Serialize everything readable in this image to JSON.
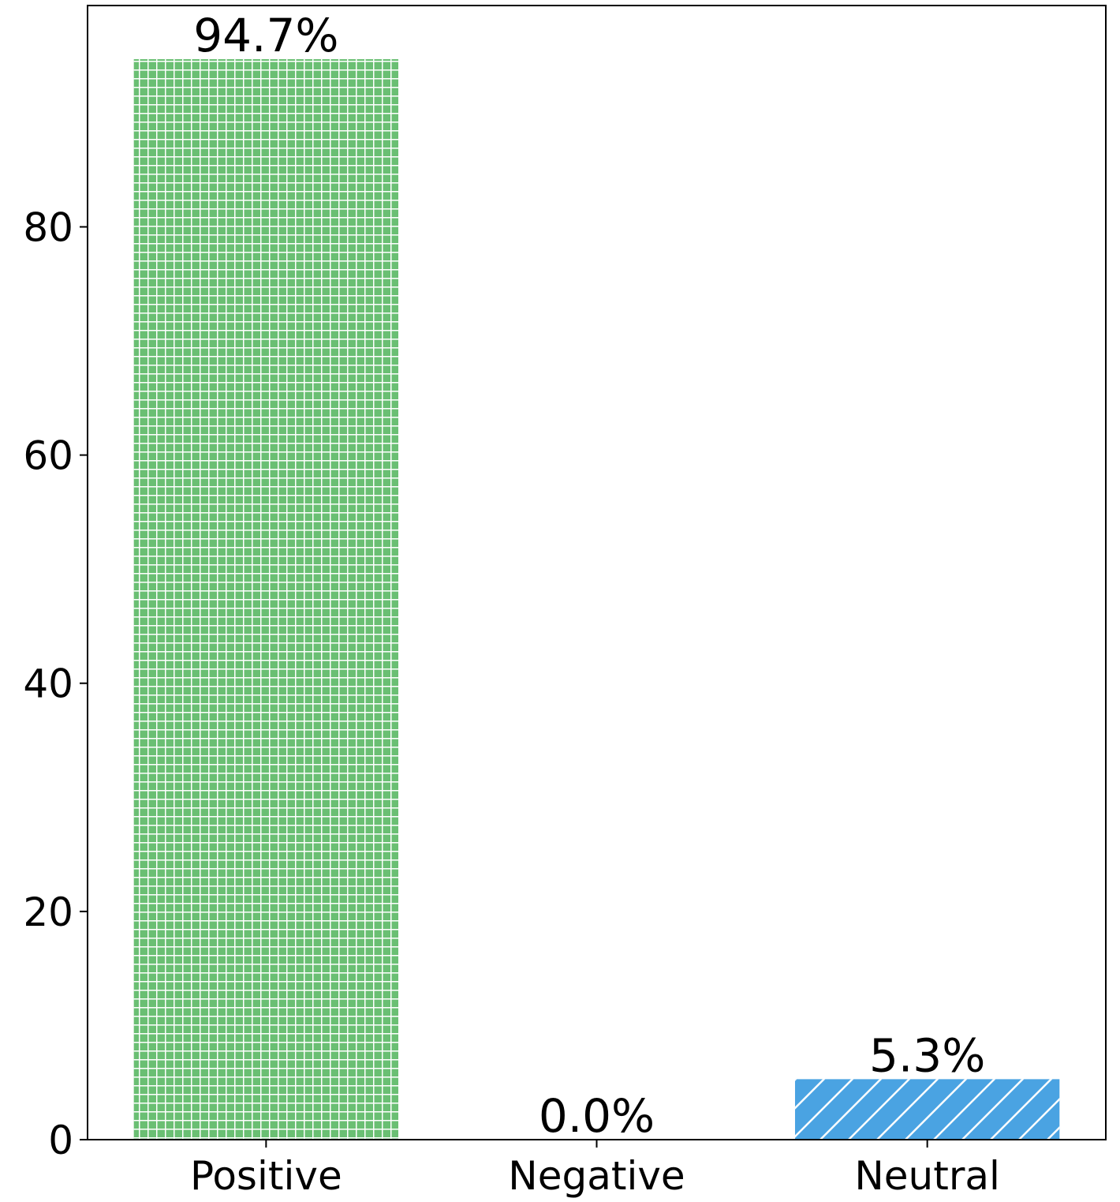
{
  "chart_data": {
    "type": "bar",
    "categories": [
      "Positive",
      "Negative",
      "Neutral"
    ],
    "values": [
      94.7,
      0.0,
      5.3
    ],
    "value_labels": [
      "94.7%",
      "0.0%",
      "5.3%"
    ],
    "colors": [
      "#6abf73",
      "#ff9f40",
      "#4aa3e2"
    ],
    "hatches": [
      "grid",
      null,
      "diagonal"
    ],
    "ylim": [
      0,
      99.4
    ],
    "yticks": [
      0,
      20,
      40,
      60,
      80
    ],
    "grid": false
  }
}
